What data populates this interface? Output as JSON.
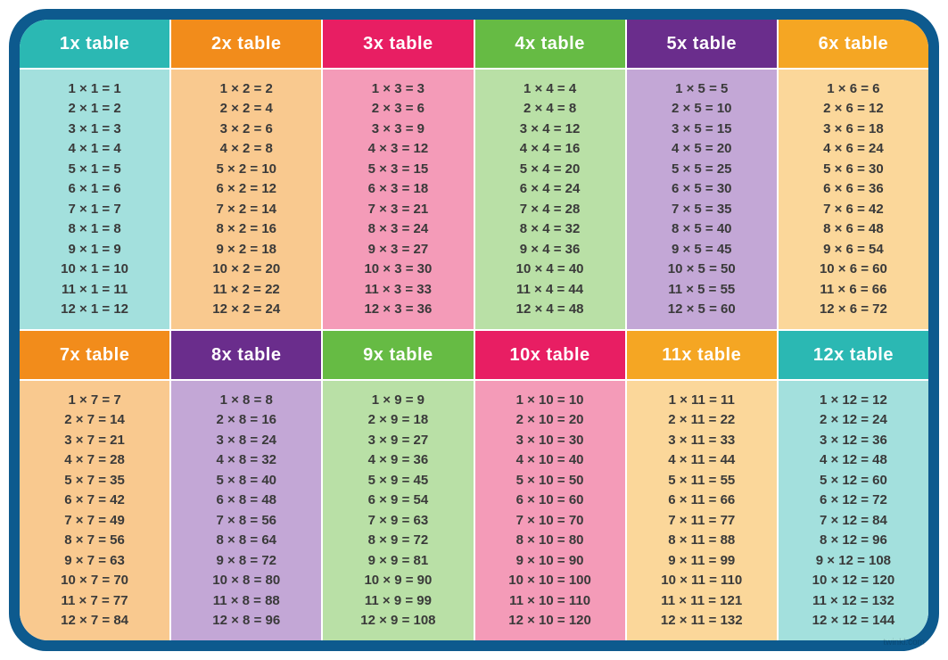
{
  "frame_color": "#0d5a8e",
  "inner_bg": "#ffffff",
  "text_color": "#3a3a3a",
  "header_text_color": "#ffffff",
  "header_fontsize": 20,
  "row_fontsize": 15,
  "watermark": "twinkl.com",
  "tables": [
    {
      "title": "1x table",
      "n": 1,
      "header_bg": "#2bb8b3",
      "body_bg": "#a3e0dd"
    },
    {
      "title": "2x table",
      "n": 2,
      "header_bg": "#f28c1b",
      "body_bg": "#f9c98f"
    },
    {
      "title": "3x table",
      "n": 3,
      "header_bg": "#e81e63",
      "body_bg": "#f49bb8"
    },
    {
      "title": "4x table",
      "n": 4,
      "header_bg": "#66bb44",
      "body_bg": "#b9e0a6"
    },
    {
      "title": "5x table",
      "n": 5,
      "header_bg": "#6a2d8c",
      "body_bg": "#c3a7d6"
    },
    {
      "title": "6x table",
      "n": 6,
      "header_bg": "#f5a623",
      "body_bg": "#fbd79a"
    },
    {
      "title": "7x table",
      "n": 7,
      "header_bg": "#f28c1b",
      "body_bg": "#f9c98f"
    },
    {
      "title": "8x table",
      "n": 8,
      "header_bg": "#6a2d8c",
      "body_bg": "#c3a7d6"
    },
    {
      "title": "9x table",
      "n": 9,
      "header_bg": "#66bb44",
      "body_bg": "#b9e0a6"
    },
    {
      "title": "10x table",
      "n": 10,
      "header_bg": "#e81e63",
      "body_bg": "#f49bb8"
    },
    {
      "title": "11x table",
      "n": 11,
      "header_bg": "#f5a623",
      "body_bg": "#fbd79a"
    },
    {
      "title": "12x table",
      "n": 12,
      "header_bg": "#2bb8b3",
      "body_bg": "#a3e0dd"
    }
  ],
  "multiplicands": [
    1,
    2,
    3,
    4,
    5,
    6,
    7,
    8,
    9,
    10,
    11,
    12
  ]
}
